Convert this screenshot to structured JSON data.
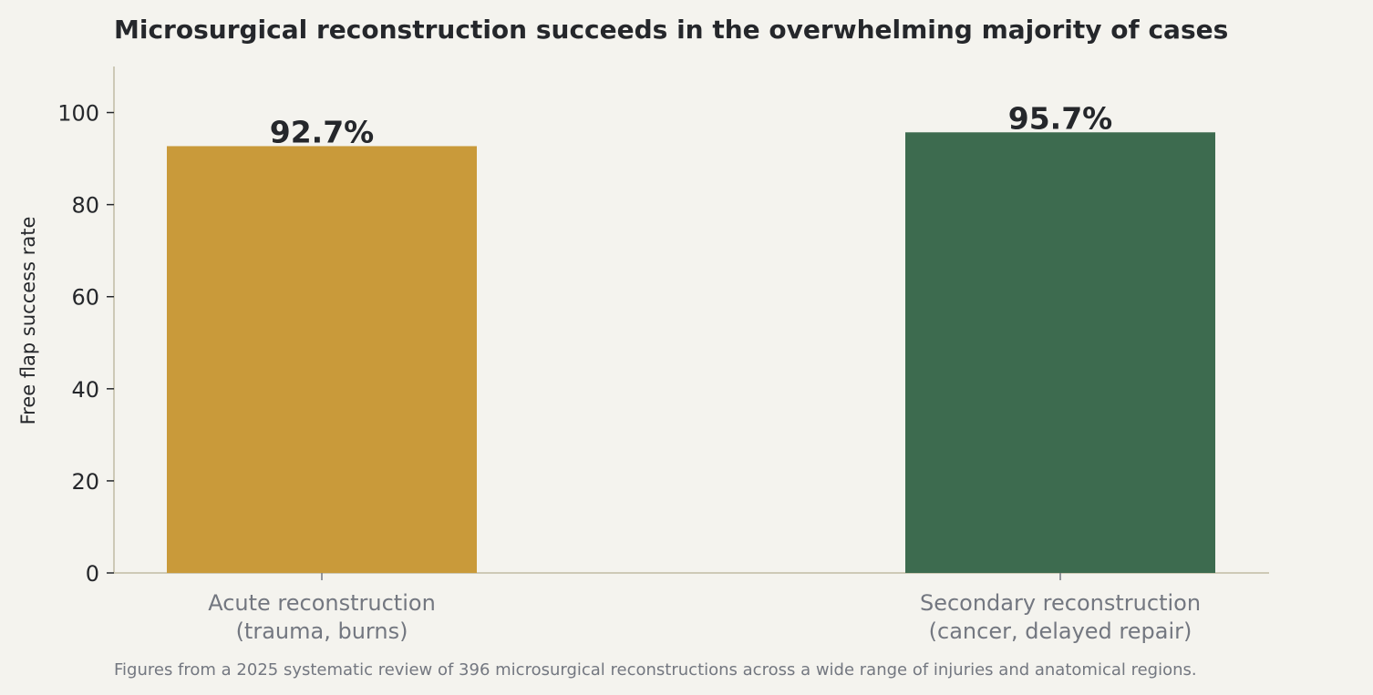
{
  "chart_data": {
    "type": "bar",
    "title": "Microsurgical reconstruction succeeds in the overwhelming majority of cases",
    "ylabel": "Free flap success rate",
    "xlabel": "",
    "categories": [
      [
        "Acute reconstruction",
        "(trauma, burns)"
      ],
      [
        "Secondary reconstruction",
        "(cancer, delayed repair)"
      ]
    ],
    "values": [
      92.7,
      95.7
    ],
    "value_labels": [
      "92.7%",
      "95.7%"
    ],
    "colors": [
      "#c99a3a",
      "#3d6b4f"
    ],
    "ylim": [
      0,
      110
    ],
    "yticks": [
      0,
      20,
      40,
      60,
      80,
      100
    ],
    "grid": false,
    "caption": "Figures from a 2025 systematic review of 396 microsurgical reconstructions across a wide range of injuries and anatomical regions."
  }
}
